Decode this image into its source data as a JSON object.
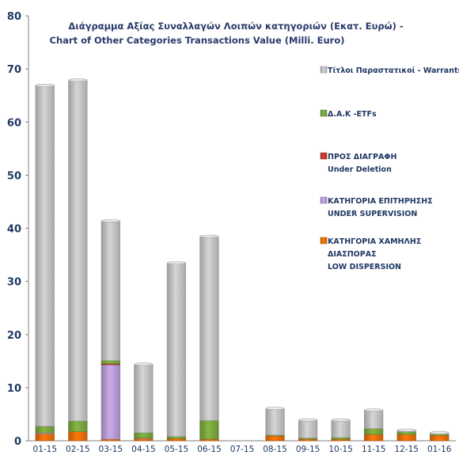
{
  "chart_data": {
    "type": "bar",
    "stacked": true,
    "title": "Διάγραμμα Αξίας Συναλλαγών Λοιπών κατηγοριών (Εκατ. Ευρώ) -",
    "subtitle": "Chart of Other Categories Transactions Value (Milli. Euro)",
    "xlabel": "",
    "ylabel": "",
    "ylim": [
      0,
      80
    ],
    "yticks": [
      0,
      10,
      20,
      30,
      40,
      50,
      60,
      70,
      80
    ],
    "grid": false,
    "legend_position": "right",
    "categories": [
      "01-15",
      "02-15",
      "03-15",
      "04-15",
      "05-15",
      "06-15",
      "07-15",
      "08-15",
      "09-15",
      "10-15",
      "11-15",
      "12-15",
      "01-16"
    ],
    "series": [
      {
        "name_lines": [
          "ΚΑΤΗΓΟΡΙΑ ΧΑΜΗΛΗΣ",
          "ΔΙΑΣΠΟΡΑΣ",
          "LOW DISPERSION"
        ],
        "color": "#e36c09",
        "values": [
          1.3,
          1.7,
          0.3,
          0.4,
          0.4,
          0.3,
          0,
          0.9,
          0.3,
          0.3,
          1.2,
          1.2,
          1.0
        ]
      },
      {
        "name_lines": [
          "ΚΑΤΗΓΟΡΙΑ ΕΠΙΤΗΡΗΣΗΣ",
          "UNDER SUPERVISION"
        ],
        "color": "#b49ad2",
        "values": [
          0.2,
          0,
          14.0,
          0.1,
          0,
          0,
          0,
          0,
          0,
          0,
          0,
          0,
          0
        ]
      },
      {
        "name_lines": [
          "ΠΡΟΣ ΔΙΑΓΡΑΦΗ",
          "Under Deletion"
        ],
        "color": "#c0392b",
        "values": [
          0,
          0,
          0.2,
          0,
          0,
          0,
          0,
          0,
          0,
          0,
          0,
          0,
          0
        ]
      },
      {
        "name_lines": [
          "Δ.Α.Κ -ETFs"
        ],
        "color": "#77a33d",
        "values": [
          1.2,
          2.0,
          0.6,
          1.0,
          0.4,
          3.5,
          0,
          0.2,
          0.2,
          0.3,
          1.1,
          0.5,
          0.2
        ]
      },
      {
        "name_lines": [
          "Τίτλοι Παραστατικοί - Warrants"
        ],
        "color": "#bfbfbf",
        "values": [
          64.2,
          64.2,
          26.3,
          12.9,
          32.7,
          34.7,
          0,
          5.0,
          3.4,
          3.3,
          3.5,
          0.3,
          0.3
        ]
      }
    ]
  }
}
